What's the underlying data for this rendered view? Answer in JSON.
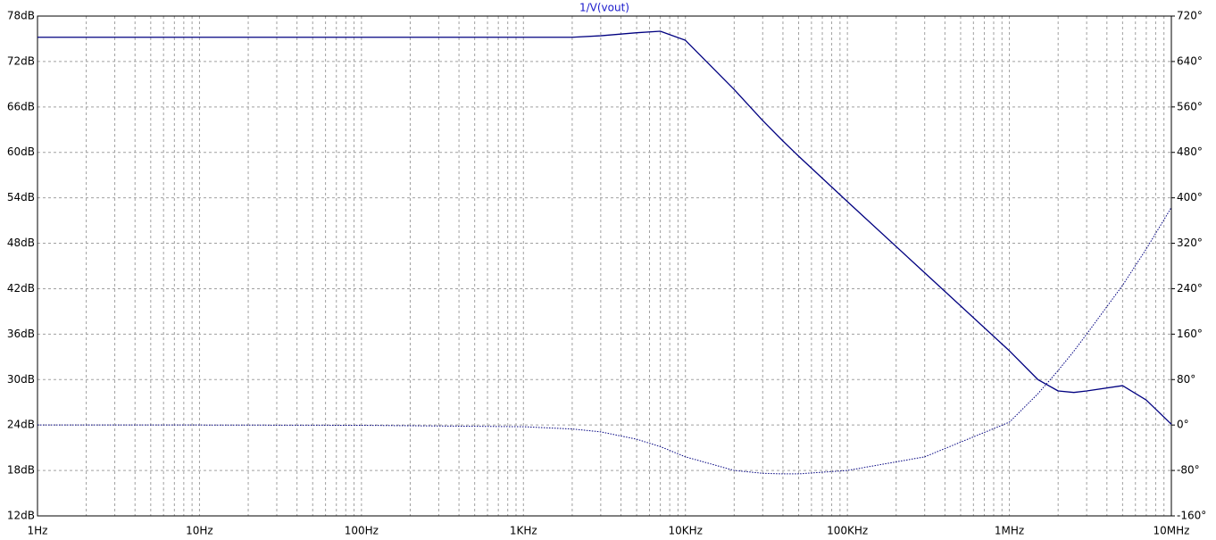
{
  "chart_data": {
    "type": "line",
    "title": "1/V(vout)",
    "xscale": "log",
    "grid": true,
    "minor_grid": true,
    "x": [
      1,
      10,
      100,
      1000,
      2000,
      3000,
      5000,
      7000,
      10000,
      20000,
      30000,
      40000,
      50000,
      100000,
      300000,
      1000000,
      1500000,
      2000000,
      2500000,
      3000000,
      5000000,
      7000000,
      10000000
    ],
    "series": [
      {
        "color": "#000080",
        "style": "solid",
        "values": [
          75.2,
          75.2,
          75.2,
          75.2,
          75.2,
          75.4,
          75.8,
          76.0,
          74.8,
          68.3,
          64.2,
          61.5,
          59.5,
          53.5,
          44.1,
          33.8,
          30.0,
          28.5,
          28.3,
          28.5,
          29.2,
          27.3,
          24.1
        ]
      },
      {
        "color": "#000080",
        "style": "dotted",
        "axis": "y2",
        "values": [
          0,
          0,
          -0.5,
          -3,
          -7,
          -12,
          -25,
          -38,
          -56,
          -80,
          -85,
          -86,
          -86,
          -80,
          -56,
          5,
          55,
          96,
          130,
          160,
          246,
          310,
          383
        ]
      }
    ],
    "xlim": [
      1,
      10000000
    ],
    "xticks": [
      {
        "value": 1,
        "label": "1Hz"
      },
      {
        "value": 10,
        "label": "10Hz"
      },
      {
        "value": 100,
        "label": "100Hz"
      },
      {
        "value": 1000,
        "label": "1KHz"
      },
      {
        "value": 10000,
        "label": "10KHz"
      },
      {
        "value": 100000,
        "label": "100KHz"
      },
      {
        "value": 1000000,
        "label": "1MHz"
      },
      {
        "value": 10000000,
        "label": "10MHz"
      }
    ],
    "ylim": [
      12,
      78
    ],
    "yticks": [
      {
        "value": 12,
        "label": "12dB"
      },
      {
        "value": 18,
        "label": "18dB"
      },
      {
        "value": 24,
        "label": "24dB"
      },
      {
        "value": 30,
        "label": "30dB"
      },
      {
        "value": 36,
        "label": "36dB"
      },
      {
        "value": 42,
        "label": "42dB"
      },
      {
        "value": 48,
        "label": "48dB"
      },
      {
        "value": 54,
        "label": "54dB"
      },
      {
        "value": 60,
        "label": "60dB"
      },
      {
        "value": 66,
        "label": "66dB"
      },
      {
        "value": 72,
        "label": "72dB"
      },
      {
        "value": 78,
        "label": "78dB"
      }
    ],
    "y2lim": [
      -160,
      720
    ],
    "y2ticks": [
      {
        "value": -160,
        "label": "-160°"
      },
      {
        "value": -80,
        "label": "-80°"
      },
      {
        "value": 0,
        "label": "0°"
      },
      {
        "value": 80,
        "label": "80°"
      },
      {
        "value": 160,
        "label": "160°"
      },
      {
        "value": 240,
        "label": "240°"
      },
      {
        "value": 320,
        "label": "320°"
      },
      {
        "value": 400,
        "label": "400°"
      },
      {
        "value": 480,
        "label": "480°"
      },
      {
        "value": 560,
        "label": "560°"
      },
      {
        "value": 640,
        "label": "640°"
      },
      {
        "value": 720,
        "label": "720°"
      }
    ]
  }
}
